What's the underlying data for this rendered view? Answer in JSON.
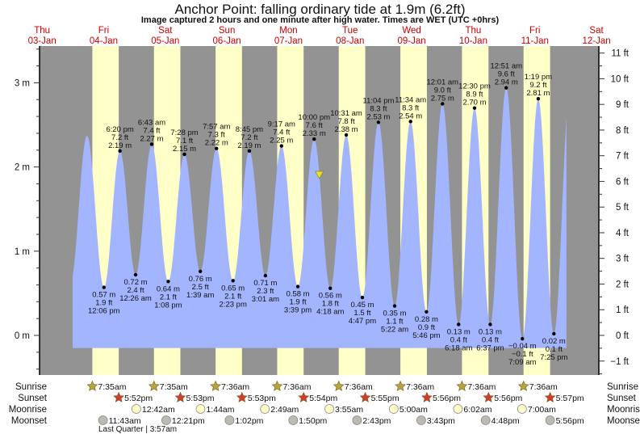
{
  "header": {
    "title": "Anchor Point: falling  ordinary tide at 1.9m (6.2ft)",
    "subtitle": "Image captured 2 hours and one minute after high water. Times are WET (UTC +0hrs)"
  },
  "colors": {
    "night": "#939393",
    "day": "#ffffc8",
    "water": "#a3b5ff",
    "day_label": "#cc0000",
    "sunrise_icon": "#b5a53a",
    "sunset_icon": "#d23c28",
    "moonrise_icon": "#ffffcc",
    "moonset_icon": "#bdbab4",
    "current_marker": "#e8e030"
  },
  "chart_data": {
    "type": "area",
    "title": "Anchor Point: falling  ordinary tide at 1.9m (6.2ft)",
    "days": [
      {
        "name": "Thu",
        "date": "03-Jan"
      },
      {
        "name": "Fri",
        "date": "04-Jan"
      },
      {
        "name": "Sat",
        "date": "05-Jan"
      },
      {
        "name": "Sun",
        "date": "06-Jan"
      },
      {
        "name": "Mon",
        "date": "07-Jan"
      },
      {
        "name": "Tue",
        "date": "08-Jan"
      },
      {
        "name": "Wed",
        "date": "09-Jan"
      },
      {
        "name": "Thu",
        "date": "10-Jan"
      },
      {
        "name": "Fri",
        "date": "11-Jan"
      },
      {
        "name": "Sat",
        "date": "12-Jan"
      }
    ],
    "y_left": {
      "unit": "m",
      "range": [
        -0.47,
        3.45
      ],
      "ticks": [
        "0 m",
        "1 m",
        "2 m",
        "3 m"
      ]
    },
    "y_right": {
      "unit": "ft",
      "ticks": [
        "−1 ft",
        "0 ft",
        "1 ft",
        "2 ft",
        "3 ft",
        "4 ft",
        "5 ft",
        "6 ft",
        "7 ft",
        "8 ft",
        "9 ft",
        "10 ft",
        "11 ft"
      ]
    },
    "curve_unlabeled": [
      {
        "day": 0,
        "time": "11:00 pm",
        "m": 0.62
      },
      {
        "day": 1,
        "time": "5:30 am",
        "m": 2.37
      },
      {
        "day": 9,
        "time": "1:45 am",
        "m": 2.95
      }
    ],
    "extremes": [
      {
        "day": 1,
        "time": "12:06 pm",
        "m": 0.57,
        "ft": 1.9,
        "type": "low"
      },
      {
        "day": 1,
        "time": "6:20 pm",
        "m": 2.19,
        "ft": 7.2,
        "type": "high"
      },
      {
        "day": 2,
        "time": "12:26 am",
        "m": 0.72,
        "ft": 2.4,
        "type": "low"
      },
      {
        "day": 2,
        "time": "6:43 am",
        "m": 2.27,
        "ft": 7.4,
        "type": "high"
      },
      {
        "day": 2,
        "time": "1:08 pm",
        "m": 0.64,
        "ft": 2.1,
        "type": "low"
      },
      {
        "day": 2,
        "time": "7:28 pm",
        "m": 2.15,
        "ft": 7.1,
        "type": "high"
      },
      {
        "day": 3,
        "time": "1:39 am",
        "m": 0.76,
        "ft": 2.5,
        "type": "low"
      },
      {
        "day": 3,
        "time": "7:57 am",
        "m": 2.22,
        "ft": 7.3,
        "type": "high"
      },
      {
        "day": 3,
        "time": "2:23 pm",
        "m": 0.65,
        "ft": 2.1,
        "type": "low"
      },
      {
        "day": 3,
        "time": "8:45 pm",
        "m": 2.19,
        "ft": 7.2,
        "type": "high"
      },
      {
        "day": 4,
        "time": "3:01 am",
        "m": 0.71,
        "ft": 2.3,
        "type": "low"
      },
      {
        "day": 4,
        "time": "9:17 am",
        "m": 2.25,
        "ft": 7.4,
        "type": "high"
      },
      {
        "day": 4,
        "time": "3:39 pm",
        "m": 0.58,
        "ft": 1.9,
        "type": "low"
      },
      {
        "day": 4,
        "time": "10:00 pm",
        "m": 2.33,
        "ft": 7.6,
        "type": "high"
      },
      {
        "day": 5,
        "time": "4:18 am",
        "m": 0.56,
        "ft": 1.8,
        "type": "low"
      },
      {
        "day": 5,
        "time": "10:31 am",
        "m": 2.38,
        "ft": 7.8,
        "type": "high"
      },
      {
        "day": 5,
        "time": "4:47 pm",
        "m": 0.45,
        "ft": 1.5,
        "type": "low"
      },
      {
        "day": 5,
        "time": "11:04 pm",
        "m": 2.53,
        "ft": 8.3,
        "type": "high"
      },
      {
        "day": 6,
        "time": "5:22 am",
        "m": 0.35,
        "ft": 1.1,
        "type": "low"
      },
      {
        "day": 6,
        "time": "11:34 am",
        "m": 2.54,
        "ft": 8.3,
        "type": "high"
      },
      {
        "day": 6,
        "time": "5:46 pm",
        "m": 0.28,
        "ft": 0.9,
        "type": "low"
      },
      {
        "day": 7,
        "time": "12:01 am",
        "m": 2.75,
        "ft": 9.0,
        "type": "high"
      },
      {
        "day": 7,
        "time": "6:18 am",
        "m": 0.13,
        "ft": 0.4,
        "type": "low"
      },
      {
        "day": 7,
        "time": "12:30 pm",
        "m": 2.7,
        "ft": 8.9,
        "type": "high"
      },
      {
        "day": 7,
        "time": "6:37 pm",
        "m": 0.13,
        "ft": 0.4,
        "type": "low"
      },
      {
        "day": 8,
        "time": "12:51 am",
        "m": 2.94,
        "ft": 9.6,
        "type": "high"
      },
      {
        "day": 8,
        "time": "7:09 am",
        "m": -0.04,
        "ft": -0.1,
        "type": "low"
      },
      {
        "day": 8,
        "time": "1:19 pm",
        "m": 2.81,
        "ft": 9.2,
        "type": "high"
      },
      {
        "day": 8,
        "time": "7:25 pm",
        "m": 0.02,
        "ft": 0.1,
        "type": "low"
      }
    ],
    "current": {
      "day": 5,
      "time": "12:01 am",
      "m": 1.9,
      "ft": 6.2,
      "state": "falling"
    }
  },
  "almanac": {
    "labels": {
      "sunrise": "Sunrise",
      "sunset": "Sunset",
      "moonrise": "Moonrise",
      "moonset": "Moonset"
    },
    "sunrise": [
      {
        "day": 1,
        "time": "7:35am"
      },
      {
        "day": 2,
        "time": "7:35am"
      },
      {
        "day": 3,
        "time": "7:36am"
      },
      {
        "day": 4,
        "time": "7:36am"
      },
      {
        "day": 5,
        "time": "7:36am"
      },
      {
        "day": 6,
        "time": "7:36am"
      },
      {
        "day": 7,
        "time": "7:36am"
      },
      {
        "day": 8,
        "time": "7:36am"
      }
    ],
    "sunset": [
      {
        "day": 1,
        "time": "5:52pm"
      },
      {
        "day": 2,
        "time": "5:53pm"
      },
      {
        "day": 3,
        "time": "5:53pm"
      },
      {
        "day": 4,
        "time": "5:54pm"
      },
      {
        "day": 5,
        "time": "5:55pm"
      },
      {
        "day": 6,
        "time": "5:56pm"
      },
      {
        "day": 7,
        "time": "5:56pm"
      },
      {
        "day": 8,
        "time": "5:57pm"
      }
    ],
    "moonrise": [
      {
        "day": 2,
        "time": "12:42am"
      },
      {
        "day": 3,
        "time": "1:44am"
      },
      {
        "day": 4,
        "time": "2:49am"
      },
      {
        "day": 5,
        "time": "3:55am"
      },
      {
        "day": 6,
        "time": "5:00am"
      },
      {
        "day": 7,
        "time": "6:02am"
      },
      {
        "day": 8,
        "time": "7:00am"
      }
    ],
    "moonset": [
      {
        "day": 1,
        "time": "11:43am"
      },
      {
        "day": 2,
        "time": "12:21pm"
      },
      {
        "day": 3,
        "time": "1:02pm"
      },
      {
        "day": 4,
        "time": "1:50pm"
      },
      {
        "day": 5,
        "time": "2:43pm"
      },
      {
        "day": 6,
        "time": "3:43pm"
      },
      {
        "day": 7,
        "time": "4:48pm"
      },
      {
        "day": 8,
        "time": "5:56pm"
      }
    ],
    "moon_phase": "Last Quarter | 3:57am"
  }
}
